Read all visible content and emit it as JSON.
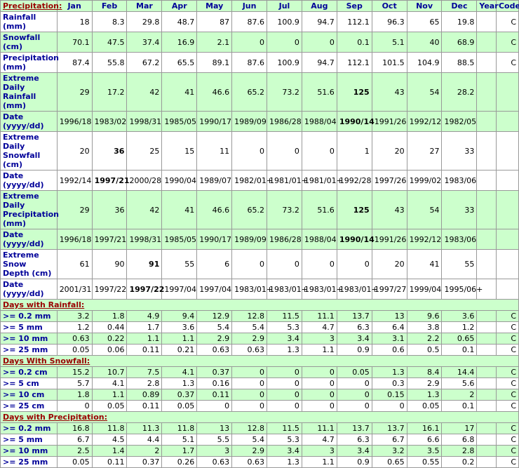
{
  "header": {
    "label": "Precipitation:",
    "columns": [
      "Jan",
      "Feb",
      "Mar",
      "Apr",
      "May",
      "Jun",
      "Jul",
      "Aug",
      "Sep",
      "Oct",
      "Nov",
      "Dec",
      "Year",
      "Code"
    ]
  },
  "rows": [
    {
      "label": "Rainfall (mm)",
      "shaded": false,
      "values": [
        18,
        8.3,
        29.8,
        48.7,
        87,
        87.6,
        100.9,
        94.7,
        112.1,
        96.3,
        65,
        19.8,
        null,
        "C"
      ]
    },
    {
      "label": "Snowfall (cm)",
      "shaded": true,
      "values": [
        70.1,
        47.5,
        37.4,
        16.9,
        2.1,
        0,
        0,
        0,
        0.1,
        5.1,
        40,
        68.9,
        null,
        "C"
      ]
    },
    {
      "label": "Precipitation (mm)",
      "shaded": false,
      "values": [
        87.4,
        55.8,
        67.2,
        65.5,
        89.1,
        87.6,
        100.9,
        94.7,
        112.1,
        101.5,
        104.9,
        88.5,
        null,
        "C"
      ]
    },
    {
      "label": "Extreme Daily Rainfall (mm)",
      "shaded": true,
      "bold": [
        8
      ],
      "values": [
        29,
        17.2,
        42,
        41,
        46.6,
        65.2,
        73.2,
        51.6,
        125,
        43,
        54,
        28.2,
        null,
        null
      ]
    },
    {
      "label": "Date (yyyy/dd)",
      "shaded": true,
      "bold": [
        8
      ],
      "values": [
        "1996/18",
        "1983/02",
        "1998/31",
        "1985/05",
        "1990/17",
        "1989/09",
        "1986/28",
        "1988/04",
        "1990/14",
        "1991/26",
        "1992/12",
        "1982/05",
        null,
        null
      ]
    },
    {
      "label": "Extreme Daily Snowfall (cm)",
      "shaded": false,
      "bold": [
        1
      ],
      "values": [
        20,
        36,
        25,
        15,
        11,
        0,
        0,
        0,
        1,
        20,
        27,
        33,
        null,
        null
      ]
    },
    {
      "label": "Date (yyyy/dd)",
      "shaded": false,
      "bold": [
        1
      ],
      "values": [
        "1992/14",
        "1997/21",
        "2000/28",
        "1990/04",
        "1989/07",
        "1982/01+",
        "1981/01+",
        "1981/01+",
        "1992/28",
        "1997/26",
        "1999/02",
        "1983/06",
        null,
        null
      ]
    },
    {
      "label": "Extreme Daily Precipitation (mm)",
      "shaded": true,
      "bold": [
        8
      ],
      "values": [
        29,
        36,
        42,
        41,
        46.6,
        65.2,
        73.2,
        51.6,
        125,
        43,
        54,
        33,
        null,
        null
      ]
    },
    {
      "label": "Date (yyyy/dd)",
      "shaded": true,
      "bold": [
        8
      ],
      "values": [
        "1996/18",
        "1997/21",
        "1998/31",
        "1985/05",
        "1990/17",
        "1989/09",
        "1986/28",
        "1988/04",
        "1990/14",
        "1991/26",
        "1992/12",
        "1983/06",
        null,
        null
      ]
    },
    {
      "label": "Extreme Snow Depth (cm)",
      "shaded": false,
      "bold": [
        2
      ],
      "values": [
        61,
        90,
        91,
        55,
        6,
        0,
        0,
        0,
        0,
        20,
        41,
        55,
        null,
        null
      ]
    },
    {
      "label": "Date (yyyy/dd)",
      "shaded": false,
      "bold": [
        2
      ],
      "values": [
        "2001/31",
        "1997/22",
        "1997/22",
        "1997/04",
        "1997/04",
        "1983/01+",
        "1983/01+",
        "1983/01+",
        "1983/01+",
        "1997/27",
        "1999/04",
        "1995/06+",
        null,
        null
      ]
    }
  ],
  "sections": [
    {
      "title": "Days with Rainfall:",
      "rows": [
        {
          "label": ">= 0.2 mm",
          "values": [
            3.2,
            1.8,
            4.9,
            9.4,
            12.9,
            12.8,
            11.5,
            11.1,
            13.7,
            13,
            9.6,
            3.6,
            null,
            "C"
          ]
        },
        {
          "label": ">= 5 mm",
          "values": [
            1.2,
            0.44,
            1.7,
            3.6,
            5.4,
            5.4,
            5.3,
            4.7,
            6.3,
            6.4,
            3.8,
            1.2,
            null,
            "C"
          ]
        },
        {
          "label": ">= 10 mm",
          "values": [
            0.63,
            0.22,
            1.1,
            1.1,
            2.9,
            2.9,
            3.4,
            3,
            3.4,
            3.1,
            2.2,
            0.65,
            null,
            "C"
          ]
        },
        {
          "label": ">= 25 mm",
          "values": [
            0.05,
            0.06,
            0.11,
            0.21,
            0.63,
            0.63,
            1.3,
            1.1,
            0.9,
            0.6,
            0.5,
            0.1,
            null,
            "C"
          ]
        }
      ]
    },
    {
      "title": "Days With Snowfall:",
      "rows": [
        {
          "label": ">= 0.2 cm",
          "values": [
            15.2,
            10.7,
            7.5,
            4.1,
            0.37,
            0,
            0,
            0,
            0.05,
            1.3,
            8.4,
            14.4,
            null,
            "C"
          ]
        },
        {
          "label": ">= 5 cm",
          "values": [
            5.7,
            4.1,
            2.8,
            1.3,
            0.16,
            0,
            0,
            0,
            0,
            0.3,
            2.9,
            5.6,
            null,
            "C"
          ]
        },
        {
          "label": ">= 10 cm",
          "values": [
            1.8,
            1.1,
            0.89,
            0.37,
            0.11,
            0,
            0,
            0,
            0,
            0.15,
            1.3,
            2,
            null,
            "C"
          ]
        },
        {
          "label": ">= 25 cm",
          "values": [
            0,
            0.05,
            0.11,
            0.05,
            0,
            0,
            0,
            0,
            0,
            0,
            0.05,
            0.1,
            null,
            "C"
          ]
        }
      ]
    },
    {
      "title": "Days with Precipitation:",
      "rows": [
        {
          "label": ">= 0.2 mm",
          "values": [
            16.8,
            11.8,
            11.3,
            11.8,
            13,
            12.8,
            11.5,
            11.1,
            13.7,
            13.7,
            16.1,
            17,
            null,
            "C"
          ]
        },
        {
          "label": ">= 5 mm",
          "values": [
            6.7,
            4.5,
            4.4,
            5.1,
            5.5,
            5.4,
            5.3,
            4.7,
            6.3,
            6.7,
            6.6,
            6.8,
            null,
            "C"
          ]
        },
        {
          "label": ">= 10 mm",
          "values": [
            2.5,
            1.4,
            2,
            1.7,
            3,
            2.9,
            3.4,
            3,
            3.4,
            3.2,
            3.5,
            2.8,
            null,
            "C"
          ]
        },
        {
          "label": ">= 25 mm",
          "values": [
            0.05,
            0.11,
            0.37,
            0.26,
            0.63,
            0.63,
            1.3,
            1.1,
            0.9,
            0.65,
            0.55,
            0.2,
            null,
            "C"
          ]
        }
      ]
    }
  ]
}
